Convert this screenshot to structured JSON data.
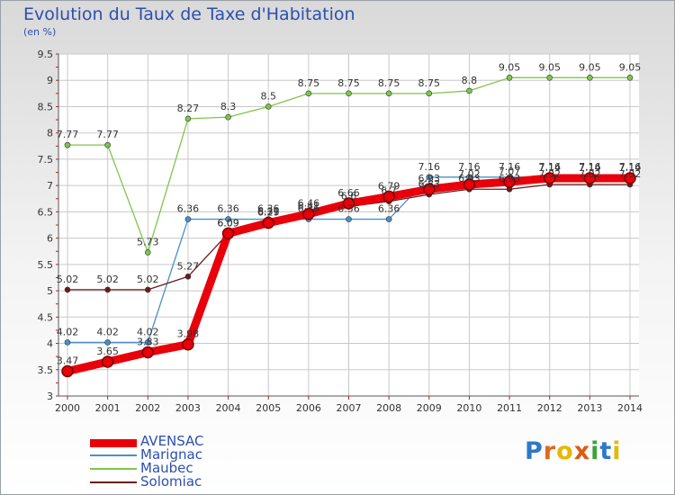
{
  "title": "Evolution du Taux de Taxe d'Habitation",
  "unit": "(en %)",
  "logo": {
    "text": "Proxiti",
    "letter_colors": [
      "#2e78c8",
      "#e06a1b",
      "#e6b800",
      "#e05a10",
      "#3aa33a",
      "#2e78c8",
      "#e6b800"
    ]
  },
  "chart_data": {
    "type": "line",
    "title": "Evolution du Taux de Taxe d'Habitation",
    "ylabel": "(en %)",
    "xlabel": "",
    "ylim": [
      3,
      9.5
    ],
    "yticks": [
      "3",
      "3.5",
      "4",
      "4.5",
      "5",
      "5.5",
      "6",
      "6.5",
      "7",
      "7.5",
      "8",
      "8.5",
      "9",
      "9.5"
    ],
    "grid": true,
    "legend_position": "bottom-left",
    "x": [
      "2000",
      "2001",
      "2002",
      "2003",
      "2004",
      "2005",
      "2006",
      "2007",
      "2008",
      "2009",
      "2010",
      "2011",
      "2012",
      "2013",
      "2014"
    ],
    "series": [
      {
        "name": "Maubec",
        "color": "#7dc64a",
        "values": [
          7.77,
          7.77,
          5.73,
          8.27,
          8.3,
          8.5,
          8.75,
          8.75,
          8.75,
          8.75,
          8.8,
          9.05,
          9.05,
          9.05,
          9.05
        ],
        "labels": [
          "7.77",
          "7.77",
          "5.73",
          "8.27",
          "8.3",
          "8.5",
          "8.75",
          "8.75",
          "8.75",
          "8.75",
          "8.8",
          "9.05",
          "9.05",
          "9.05",
          "9.05"
        ]
      },
      {
        "name": "Marignac",
        "color": "#4a90c8",
        "values": [
          4.02,
          4.02,
          4.02,
          6.36,
          6.36,
          6.36,
          6.36,
          6.36,
          6.36,
          7.16,
          7.16,
          7.16,
          7.16,
          7.16,
          7.16
        ],
        "labels": [
          "4.02",
          "4.02",
          "4.02",
          "6.36",
          "6.36",
          "6.36",
          "6.36",
          "6.36",
          "6.36",
          "7.16",
          "7.16",
          "7.16",
          "7.16",
          "7.16",
          "7.16"
        ]
      },
      {
        "name": "Solomiac",
        "color": "#6b1b1b",
        "values": [
          5.02,
          5.02,
          5.02,
          5.27,
          6.09,
          6.31,
          6.41,
          6.6,
          6.7,
          6.83,
          6.93,
          6.93,
          7.02,
          7.02,
          7.02
        ],
        "labels": [
          "5.02",
          "5.02",
          "5.02",
          "5.27",
          "6.09",
          "6.31",
          "6.41",
          "6.6",
          "6.7",
          "6.83",
          "6.93",
          "6.93",
          "7.02",
          "7.02",
          "7.02"
        ]
      },
      {
        "name": "AVENSAC",
        "color": "#e8000b",
        "values": [
          3.47,
          3.65,
          3.83,
          3.98,
          6.09,
          6.29,
          6.46,
          6.66,
          6.79,
          6.93,
          7.02,
          7.07,
          7.14,
          7.14,
          7.14
        ],
        "labels": [
          "3.47",
          "3.65",
          "3.83",
          "3.98",
          "6.09",
          "6.29",
          "6.46",
          "6.66",
          "6.79",
          "6.93",
          "7.02",
          "7.07",
          "7.14",
          "7.14",
          "7.14"
        ]
      }
    ]
  },
  "legend": [
    {
      "name": "AVENSAC",
      "color": "#e8000b"
    },
    {
      "name": "Marignac",
      "color": "#4a90c8"
    },
    {
      "name": "Maubec",
      "color": "#7dc64a"
    },
    {
      "name": "Solomiac",
      "color": "#6b1b1b"
    }
  ]
}
